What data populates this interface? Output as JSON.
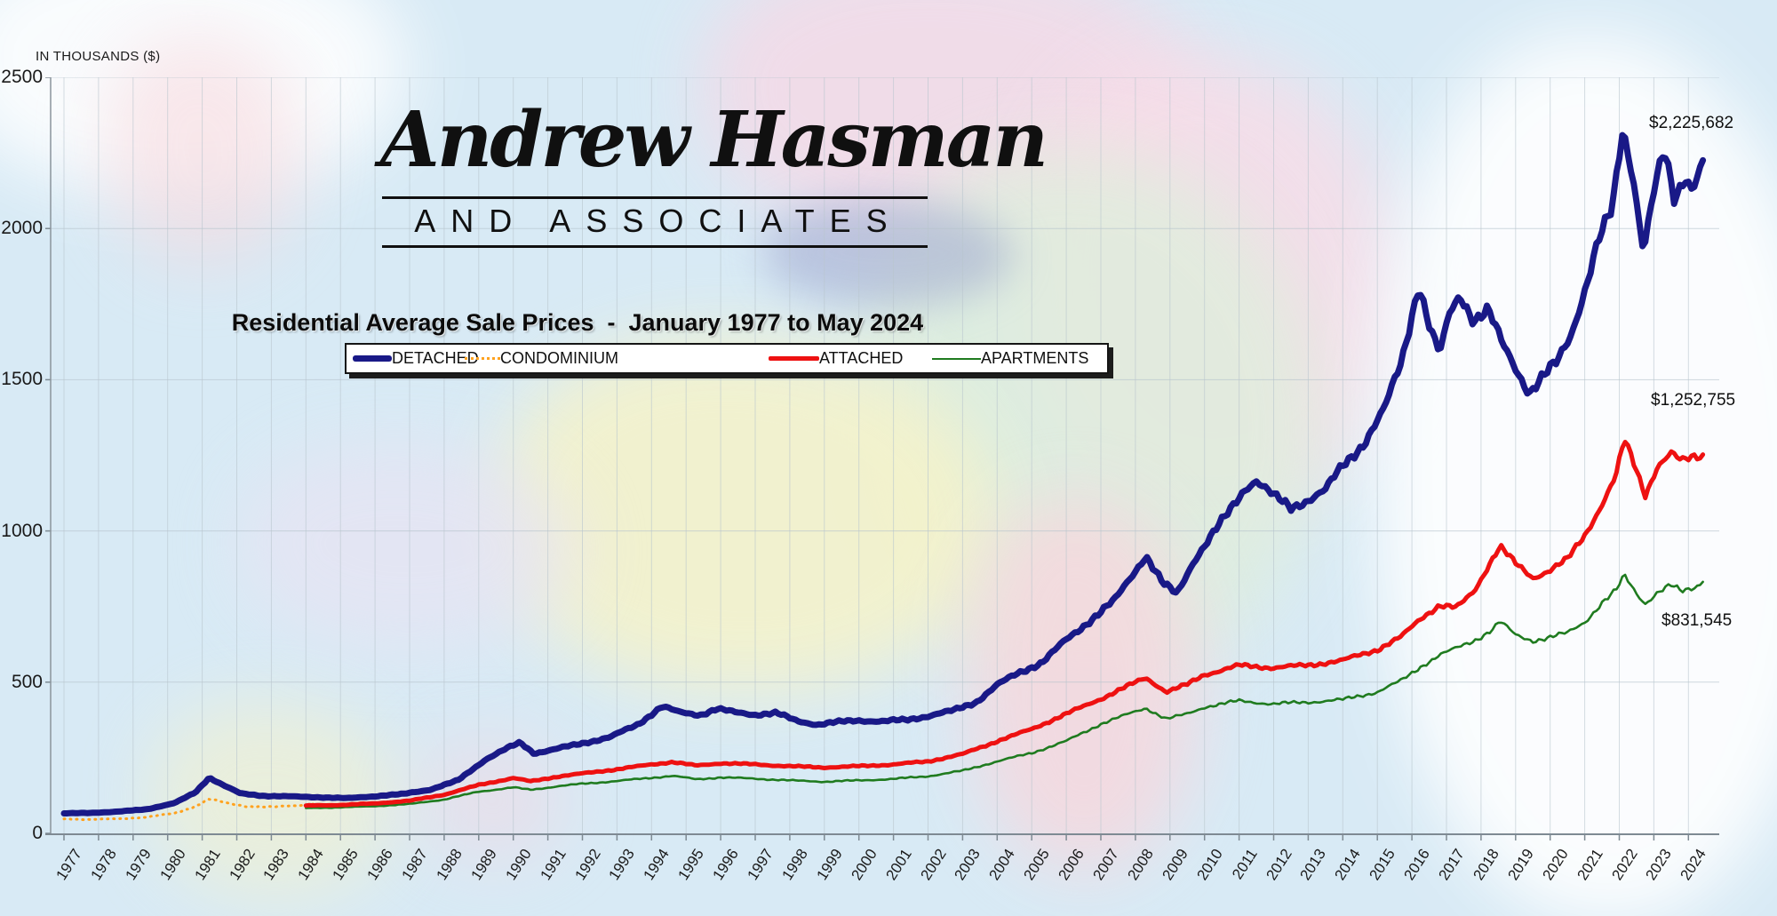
{
  "axis_title": "IN THOUSANDS ($)",
  "logo": {
    "name": "Andrew Hasman",
    "subtitle": "AND ASSOCIATES"
  },
  "title": "Residential Average Sale Prices  -  January 1977 to May 2024",
  "legend": [
    {
      "label": "DETACHED",
      "color": "#191987",
      "style": "thick solid line"
    },
    {
      "label": "CONDOMINIUM",
      "color": "#FFA21F",
      "style": "dotted line"
    },
    {
      "label": "ATTACHED",
      "color": "#EE1111",
      "style": "solid line"
    },
    {
      "label": "APARTMENTS",
      "color": "#1F7B1F",
      "style": "thin solid line"
    }
  ],
  "end_labels": [
    {
      "series": "DETACHED",
      "text": "$2,225,682"
    },
    {
      "series": "ATTACHED",
      "text": "$1,252,755"
    },
    {
      "series": "APARTMENTS",
      "text": "$831,545"
    }
  ],
  "chart_data": {
    "type": "line",
    "title": "Residential Average Sale Prices  -  January 1977 to May 2024",
    "xlabel": "",
    "ylabel": "IN THOUSANDS ($)",
    "ylim": [
      0,
      2500
    ],
    "y_ticks": [
      0,
      500,
      1000,
      1500,
      2000,
      2500
    ],
    "x_ticks": [
      1977,
      1978,
      1979,
      1980,
      1981,
      1982,
      1983,
      1984,
      1985,
      1986,
      1987,
      1988,
      1989,
      1990,
      1991,
      1992,
      1993,
      1994,
      1995,
      1996,
      1997,
      1998,
      1999,
      2000,
      2001,
      2002,
      2003,
      2004,
      2005,
      2006,
      2007,
      2008,
      2009,
      2010,
      2011,
      2012,
      2013,
      2014,
      2015,
      2016,
      2017,
      2018,
      2019,
      2020,
      2021,
      2022,
      2023,
      2024
    ],
    "x_range": [
      1977,
      2024.42
    ],
    "grid": true,
    "legend_position": "top-center",
    "units": "thousands of dollars",
    "series": [
      {
        "name": "CONDOMINIUM",
        "color": "#FFA21F",
        "width": 3,
        "dash": "dotted",
        "wiggle": 0.04,
        "seed": 4,
        "points": [
          [
            1977,
            48
          ],
          [
            1977.8,
            46
          ],
          [
            1978.6,
            48
          ],
          [
            1979.4,
            54
          ],
          [
            1980.2,
            66
          ],
          [
            1980.8,
            90
          ],
          [
            1981.2,
            113
          ],
          [
            1981.7,
            100
          ],
          [
            1982.3,
            90
          ],
          [
            1983,
            86
          ],
          [
            1983.6,
            92
          ],
          [
            1984.2,
            97
          ]
        ]
      },
      {
        "name": "APARTMENTS",
        "color": "#1F7B1F",
        "width": 2.6,
        "dash": null,
        "wiggle": 0.016,
        "seed": 3,
        "points": [
          [
            1984,
            84
          ],
          [
            1985,
            86
          ],
          [
            1986,
            90
          ],
          [
            1987,
            97
          ],
          [
            1988,
            112
          ],
          [
            1989,
            138
          ],
          [
            1990,
            152
          ],
          [
            1990.5,
            144
          ],
          [
            1991.3,
            156
          ],
          [
            1992,
            164
          ],
          [
            1993,
            173
          ],
          [
            1994,
            184
          ],
          [
            1994.6,
            190
          ],
          [
            1995.3,
            179
          ],
          [
            1996,
            185
          ],
          [
            1997,
            181
          ],
          [
            1998,
            175
          ],
          [
            1999,
            171
          ],
          [
            2000,
            175
          ],
          [
            2001,
            180
          ],
          [
            2002,
            189
          ],
          [
            2003,
            207
          ],
          [
            2004,
            238
          ],
          [
            2005,
            266
          ],
          [
            2006,
            305
          ],
          [
            2007,
            362
          ],
          [
            2008.3,
            415
          ],
          [
            2008.9,
            378
          ],
          [
            2009.5,
            395
          ],
          [
            2010,
            418
          ],
          [
            2011,
            438
          ],
          [
            2012,
            428
          ],
          [
            2013,
            434
          ],
          [
            2014,
            442
          ],
          [
            2015,
            468
          ],
          [
            2015.7,
            505
          ],
          [
            2016.3,
            555
          ],
          [
            2016.8,
            590
          ],
          [
            2017.3,
            612
          ],
          [
            2017.8,
            638
          ],
          [
            2018.3,
            672
          ],
          [
            2018.55,
            700
          ],
          [
            2019,
            655
          ],
          [
            2019.5,
            638
          ],
          [
            2020,
            648
          ],
          [
            2020.5,
            662
          ],
          [
            2021,
            700
          ],
          [
            2021.5,
            762
          ],
          [
            2021.9,
            800
          ],
          [
            2022.15,
            852
          ],
          [
            2022.5,
            795
          ],
          [
            2022.75,
            762
          ],
          [
            2023.1,
            795
          ],
          [
            2023.5,
            818
          ],
          [
            2023.8,
            800
          ],
          [
            2024.1,
            812
          ],
          [
            2024.42,
            831.545
          ]
        ]
      },
      {
        "name": "ATTACHED",
        "color": "#EE1111",
        "width": 5,
        "dash": null,
        "wiggle": 0.014,
        "seed": 2,
        "points": [
          [
            1984,
            92
          ],
          [
            1985,
            94
          ],
          [
            1986,
            99
          ],
          [
            1987,
            108
          ],
          [
            1988,
            128
          ],
          [
            1989,
            160
          ],
          [
            1990,
            183
          ],
          [
            1990.5,
            172
          ],
          [
            1991.3,
            188
          ],
          [
            1992,
            198
          ],
          [
            1993,
            212
          ],
          [
            1994,
            228
          ],
          [
            1994.6,
            236
          ],
          [
            1995.3,
            224
          ],
          [
            1996,
            232
          ],
          [
            1997,
            228
          ],
          [
            1998,
            222
          ],
          [
            1999,
            218
          ],
          [
            2000,
            222
          ],
          [
            2001,
            228
          ],
          [
            2002,
            238
          ],
          [
            2003,
            262
          ],
          [
            2004,
            305
          ],
          [
            2005,
            345
          ],
          [
            2006,
            395
          ],
          [
            2007,
            445
          ],
          [
            2008.3,
            515
          ],
          [
            2008.9,
            468
          ],
          [
            2009.5,
            492
          ],
          [
            2010,
            525
          ],
          [
            2011,
            555
          ],
          [
            2012,
            548
          ],
          [
            2013,
            556
          ],
          [
            2014,
            572
          ],
          [
            2015,
            608
          ],
          [
            2015.7,
            650
          ],
          [
            2016.3,
            715
          ],
          [
            2016.8,
            755
          ],
          [
            2017.3,
            745
          ],
          [
            2017.8,
            800
          ],
          [
            2018.3,
            905
          ],
          [
            2018.55,
            950
          ],
          [
            2019,
            890
          ],
          [
            2019.5,
            845
          ],
          [
            2020,
            872
          ],
          [
            2020.5,
            905
          ],
          [
            2021,
            985
          ],
          [
            2021.5,
            1090
          ],
          [
            2021.9,
            1180
          ],
          [
            2022.15,
            1300
          ],
          [
            2022.5,
            1200
          ],
          [
            2022.75,
            1120
          ],
          [
            2023.1,
            1215
          ],
          [
            2023.5,
            1255
          ],
          [
            2023.8,
            1228
          ],
          [
            2024.1,
            1245
          ],
          [
            2024.42,
            1252.755
          ]
        ]
      },
      {
        "name": "DETACHED",
        "color": "#191987",
        "width": 7,
        "dash": null,
        "wiggle": 0.016,
        "seed": 1,
        "points": [
          [
            1977,
            66
          ],
          [
            1977.8,
            68
          ],
          [
            1978.6,
            72
          ],
          [
            1979.4,
            80
          ],
          [
            1980.2,
            100
          ],
          [
            1980.8,
            135
          ],
          [
            1981.2,
            185
          ],
          [
            1981.6,
            160
          ],
          [
            1982.1,
            132
          ],
          [
            1982.8,
            124
          ],
          [
            1983.5,
            122
          ],
          [
            1984.3,
            120
          ],
          [
            1985.2,
            116
          ],
          [
            1986,
            123
          ],
          [
            1986.8,
            130
          ],
          [
            1987.6,
            145
          ],
          [
            1988.4,
            175
          ],
          [
            1989.2,
            245
          ],
          [
            1989.8,
            280
          ],
          [
            1990.2,
            300
          ],
          [
            1990.6,
            265
          ],
          [
            1991.2,
            278
          ],
          [
            1992,
            298
          ],
          [
            1992.8,
            318
          ],
          [
            1993.6,
            360
          ],
          [
            1994.3,
            420
          ],
          [
            1994.8,
            400
          ],
          [
            1995.4,
            392
          ],
          [
            1995.9,
            412
          ],
          [
            1996.4,
            400
          ],
          [
            1997,
            393
          ],
          [
            1997.6,
            398
          ],
          [
            1998.2,
            372
          ],
          [
            1998.8,
            360
          ],
          [
            1999.4,
            368
          ],
          [
            2000,
            374
          ],
          [
            2000.7,
            370
          ],
          [
            2001.4,
            376
          ],
          [
            2002,
            388
          ],
          [
            2002.7,
            405
          ],
          [
            2003.4,
            435
          ],
          [
            2004,
            490
          ],
          [
            2004.6,
            530
          ],
          [
            2005.3,
            565
          ],
          [
            2006,
            640
          ],
          [
            2006.7,
            705
          ],
          [
            2007.4,
            770
          ],
          [
            2008,
            870
          ],
          [
            2008.3,
            920
          ],
          [
            2008.8,
            825
          ],
          [
            2009.2,
            790
          ],
          [
            2009.7,
            905
          ],
          [
            2010.2,
            985
          ],
          [
            2010.7,
            1060
          ],
          [
            2011.2,
            1145
          ],
          [
            2011.5,
            1170
          ],
          [
            2012,
            1115
          ],
          [
            2012.5,
            1075
          ],
          [
            2013,
            1105
          ],
          [
            2013.5,
            1135
          ],
          [
            2014,
            1215
          ],
          [
            2014.6,
            1290
          ],
          [
            2015.2,
            1400
          ],
          [
            2015.7,
            1560
          ],
          [
            2016.2,
            1820
          ],
          [
            2016.5,
            1680
          ],
          [
            2016.8,
            1580
          ],
          [
            2017.1,
            1720
          ],
          [
            2017.4,
            1780
          ],
          [
            2017.8,
            1700
          ],
          [
            2018.2,
            1730
          ],
          [
            2018.6,
            1620
          ],
          [
            2019,
            1540
          ],
          [
            2019.4,
            1460
          ],
          [
            2019.8,
            1510
          ],
          [
            2020.2,
            1555
          ],
          [
            2020.6,
            1650
          ],
          [
            2021,
            1800
          ],
          [
            2021.4,
            1960
          ],
          [
            2021.8,
            2060
          ],
          [
            2022.1,
            2330
          ],
          [
            2022.4,
            2180
          ],
          [
            2022.7,
            1930
          ],
          [
            2023,
            2120
          ],
          [
            2023.3,
            2250
          ],
          [
            2023.6,
            2090
          ],
          [
            2023.9,
            2180
          ],
          [
            2024.1,
            2140
          ],
          [
            2024.42,
            2225.682
          ]
        ]
      }
    ]
  }
}
